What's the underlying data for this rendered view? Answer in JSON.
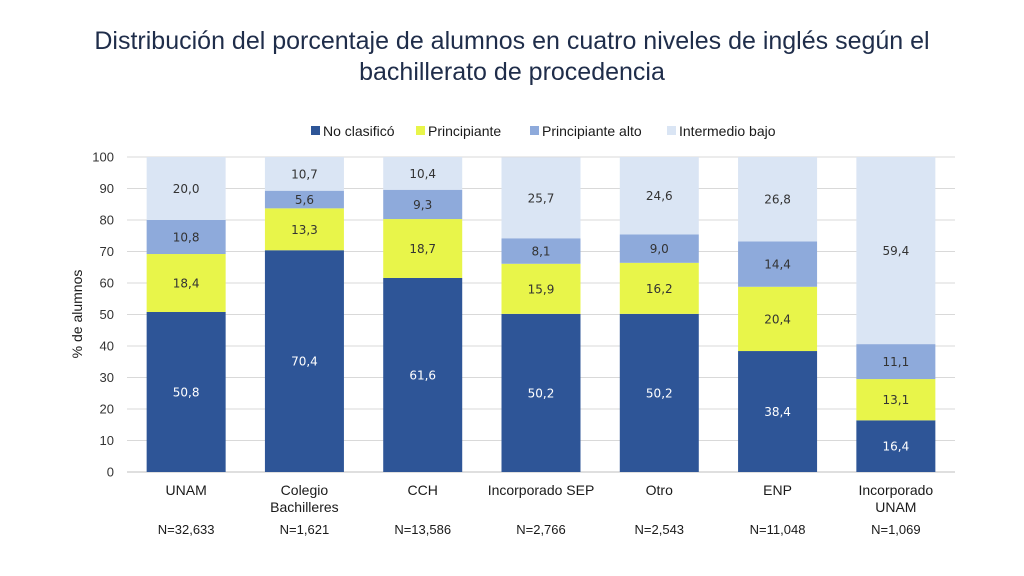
{
  "chart_data": {
    "type": "bar",
    "stacked": true,
    "title": [
      "Distribución del porcentaje de alumnos en cuatro niveles de inglés según el",
      "bachillerato de procedencia"
    ],
    "ylabel": "% de alumnos",
    "xlabel": "",
    "ylim": [
      0,
      100
    ],
    "yticks": [
      0,
      10,
      20,
      30,
      40,
      50,
      60,
      70,
      80,
      90,
      100
    ],
    "grid": true,
    "legend_position": "top",
    "categories": [
      [
        "UNAM"
      ],
      [
        "Colegio",
        "Bachilleres"
      ],
      [
        "CCH"
      ],
      [
        "Incorporado SEP"
      ],
      [
        "Otro"
      ],
      [
        "ENP"
      ],
      [
        "Incorporado",
        "UNAM"
      ]
    ],
    "sample_sizes": [
      "N=32,633",
      "N=1,621",
      "N=13,586",
      "N=2,766",
      "N=2,543",
      "N=11,048",
      "N=1,069"
    ],
    "series": [
      {
        "name": "No clasificó",
        "color": "#2e5597",
        "label_color": "#ffffff",
        "values": [
          50.8,
          70.4,
          61.6,
          50.2,
          50.2,
          38.4,
          16.4
        ],
        "labels": [
          "50,8",
          "70,4",
          "61,6",
          "50,2",
          "50,2",
          "38,4",
          "16,4"
        ]
      },
      {
        "name": "Principiante",
        "color": "#e8f54a",
        "label_color": "#333333",
        "values": [
          18.4,
          13.3,
          18.7,
          15.9,
          16.2,
          20.4,
          13.1
        ],
        "labels": [
          "18,4",
          "13,3",
          "18,7",
          "15,9",
          "16,2",
          "20,4",
          "13,1"
        ]
      },
      {
        "name": "Principiante alto",
        "color": "#8eaadb",
        "label_color": "#333333",
        "values": [
          10.8,
          5.6,
          9.3,
          8.1,
          9.0,
          14.4,
          11.1
        ],
        "labels": [
          "10,8",
          "5,6",
          "9,3",
          "8,1",
          "9,0",
          "14,4",
          "11,1"
        ]
      },
      {
        "name": "Intermedio bajo",
        "color": "#dae5f4",
        "label_color": "#333333",
        "values": [
          20.0,
          10.7,
          10.4,
          25.7,
          24.6,
          26.8,
          59.4
        ],
        "labels": [
          "20,0",
          "10,7",
          "10,4",
          "25,7",
          "24,6",
          "26,8",
          "59,4"
        ]
      }
    ]
  }
}
